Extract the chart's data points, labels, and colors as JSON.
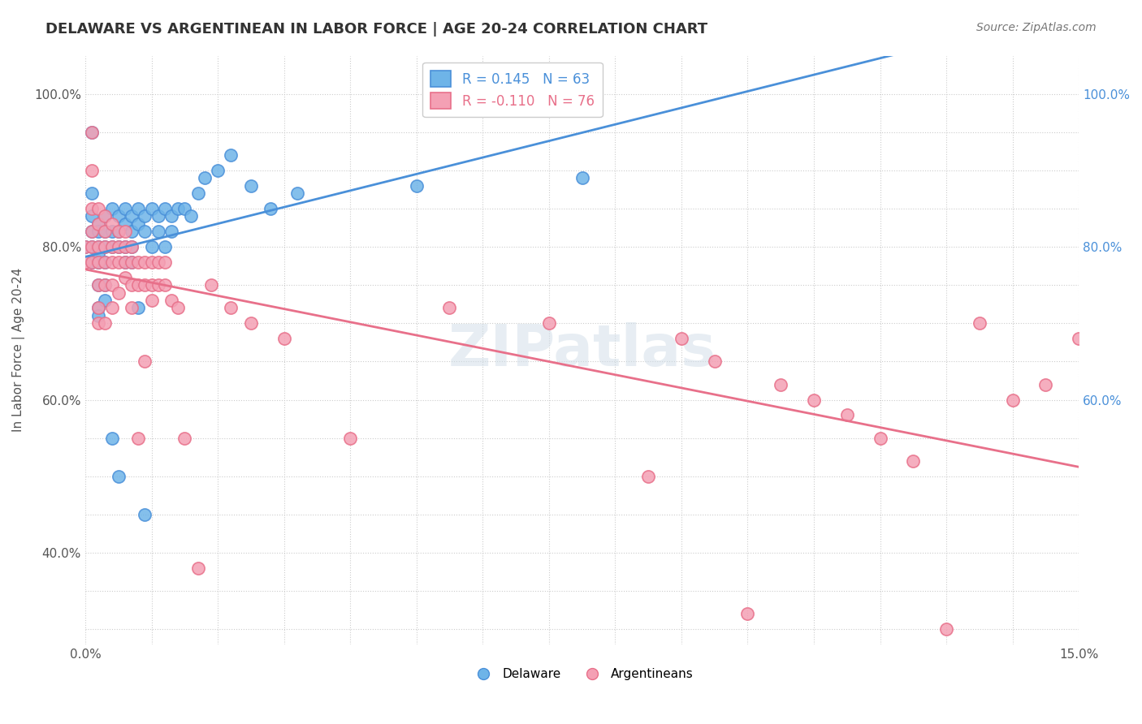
{
  "title": "DELAWARE VS ARGENTINEAN IN LABOR FORCE | AGE 20-24 CORRELATION CHART",
  "source": "Source: ZipAtlas.com",
  "xlabel": "",
  "ylabel": "In Labor Force | Age 20-24",
  "xlim": [
    0.0,
    0.15
  ],
  "ylim": [
    0.28,
    1.05
  ],
  "xtick_labels": [
    "0.0%",
    "",
    "",
    "",
    "",
    "",
    "",
    "",
    "",
    "",
    "",
    "",
    "",
    "",
    "",
    "15.0%"
  ],
  "ytick_labels": [
    "",
    "40.0%",
    "",
    "60.0%",
    "",
    "80.0%",
    "",
    "100.0%"
  ],
  "r_delaware": 0.145,
  "n_delaware": 63,
  "r_argentinean": -0.11,
  "n_argentinean": 76,
  "color_delaware": "#6eb4e8",
  "color_argentinean": "#f4a0b4",
  "trendline_delaware_color": "#4a90d9",
  "trendline_argentinean_color": "#e8708a",
  "background_color": "#ffffff",
  "grid_color": "#cccccc",
  "watermark_text": "ZIPatlas",
  "watermark_color_zip": "#c8d8e8",
  "watermark_color_atlas": "#e8c8d0",
  "title_fontsize": 13,
  "legend_fontsize": 12,
  "watermark_fontsize": 52,
  "delaware_x": [
    0.0,
    0.001,
    0.001,
    0.001,
    0.001,
    0.001,
    0.001,
    0.002,
    0.002,
    0.002,
    0.002,
    0.002,
    0.002,
    0.002,
    0.002,
    0.003,
    0.003,
    0.003,
    0.003,
    0.003,
    0.003,
    0.004,
    0.004,
    0.004,
    0.004,
    0.005,
    0.005,
    0.005,
    0.005,
    0.006,
    0.006,
    0.006,
    0.006,
    0.007,
    0.007,
    0.007,
    0.007,
    0.008,
    0.008,
    0.008,
    0.009,
    0.009,
    0.009,
    0.01,
    0.01,
    0.011,
    0.011,
    0.012,
    0.012,
    0.013,
    0.013,
    0.014,
    0.015,
    0.016,
    0.017,
    0.018,
    0.02,
    0.022,
    0.025,
    0.028,
    0.032,
    0.05,
    0.075
  ],
  "delaware_y": [
    0.8,
    0.95,
    0.87,
    0.84,
    0.82,
    0.8,
    0.78,
    0.83,
    0.82,
    0.8,
    0.79,
    0.78,
    0.75,
    0.72,
    0.71,
    0.84,
    0.82,
    0.8,
    0.78,
    0.75,
    0.73,
    0.85,
    0.82,
    0.8,
    0.55,
    0.84,
    0.82,
    0.8,
    0.5,
    0.85,
    0.83,
    0.8,
    0.78,
    0.84,
    0.82,
    0.8,
    0.78,
    0.85,
    0.83,
    0.72,
    0.84,
    0.82,
    0.45,
    0.85,
    0.8,
    0.84,
    0.82,
    0.85,
    0.8,
    0.84,
    0.82,
    0.85,
    0.85,
    0.84,
    0.87,
    0.89,
    0.9,
    0.92,
    0.88,
    0.85,
    0.87,
    0.88,
    0.89
  ],
  "argentinean_x": [
    0.0,
    0.0,
    0.001,
    0.001,
    0.001,
    0.001,
    0.001,
    0.001,
    0.002,
    0.002,
    0.002,
    0.002,
    0.002,
    0.002,
    0.002,
    0.003,
    0.003,
    0.003,
    0.003,
    0.003,
    0.003,
    0.004,
    0.004,
    0.004,
    0.004,
    0.004,
    0.005,
    0.005,
    0.005,
    0.005,
    0.006,
    0.006,
    0.006,
    0.006,
    0.007,
    0.007,
    0.007,
    0.007,
    0.008,
    0.008,
    0.008,
    0.009,
    0.009,
    0.009,
    0.01,
    0.01,
    0.01,
    0.011,
    0.011,
    0.012,
    0.012,
    0.013,
    0.014,
    0.015,
    0.017,
    0.019,
    0.022,
    0.025,
    0.03,
    0.04,
    0.055,
    0.07,
    0.085,
    0.09,
    0.095,
    0.1,
    0.105,
    0.11,
    0.115,
    0.12,
    0.125,
    0.13,
    0.135,
    0.14,
    0.145,
    0.15
  ],
  "argentinean_y": [
    0.8,
    0.78,
    0.95,
    0.9,
    0.85,
    0.82,
    0.8,
    0.78,
    0.85,
    0.83,
    0.8,
    0.78,
    0.75,
    0.72,
    0.7,
    0.84,
    0.82,
    0.8,
    0.78,
    0.75,
    0.7,
    0.83,
    0.8,
    0.78,
    0.75,
    0.72,
    0.82,
    0.8,
    0.78,
    0.74,
    0.82,
    0.8,
    0.78,
    0.76,
    0.8,
    0.78,
    0.75,
    0.72,
    0.78,
    0.75,
    0.55,
    0.78,
    0.75,
    0.65,
    0.78,
    0.75,
    0.73,
    0.78,
    0.75,
    0.78,
    0.75,
    0.73,
    0.72,
    0.55,
    0.38,
    0.75,
    0.72,
    0.7,
    0.68,
    0.55,
    0.72,
    0.7,
    0.5,
    0.68,
    0.65,
    0.32,
    0.62,
    0.6,
    0.58,
    0.55,
    0.52,
    0.3,
    0.7,
    0.6,
    0.62,
    0.68
  ]
}
